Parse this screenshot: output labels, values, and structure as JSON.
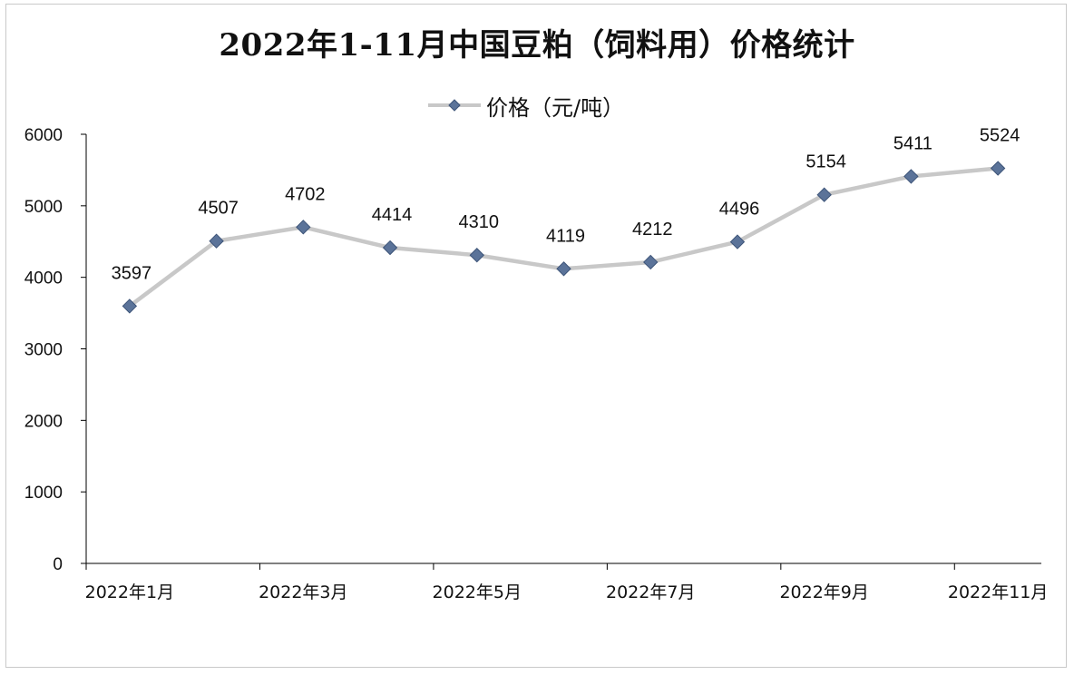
{
  "chart_data": {
    "type": "line",
    "title": "2022年1-11月中国豆粕（饲料用）价格统计",
    "xlabel": "",
    "ylabel": "",
    "ylim": [
      0,
      6000
    ],
    "yticks": [
      0,
      1000,
      2000,
      3000,
      4000,
      5000,
      6000
    ],
    "categories": [
      "2022年1月",
      "2022年2月",
      "2022年3月",
      "2022年4月",
      "2022年5月",
      "2022年6月",
      "2022年7月",
      "2022年8月",
      "2022年9月",
      "2022年10月",
      "2022年11月"
    ],
    "category_tick_labels": [
      "2022年1月",
      "2022年3月",
      "2022年5月",
      "2022年7月",
      "2022年9月",
      "2022年11月"
    ],
    "series": [
      {
        "name": "价格（元/吨）",
        "values": [
          3597,
          4507,
          4702,
          4414,
          4310,
          4119,
          4212,
          4496,
          5154,
          5411,
          5524
        ]
      }
    ],
    "grid": false,
    "legend": "top",
    "colors": {
      "line": "#c8c8c8",
      "marker": "#5b7399",
      "marker_edge": "#3d5478",
      "axis": "#000000"
    }
  }
}
